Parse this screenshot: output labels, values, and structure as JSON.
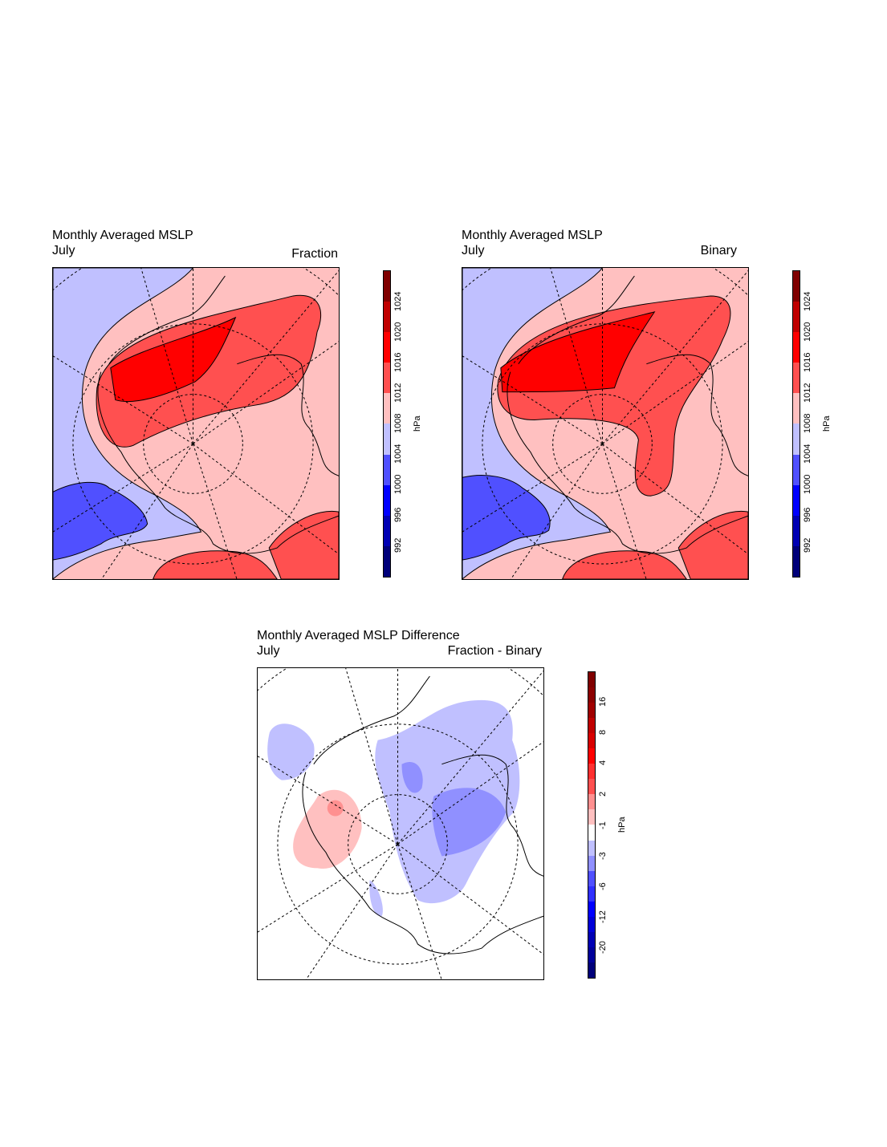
{
  "panels": [
    {
      "title": "Monthly Averaged MSLP",
      "month": "July",
      "label": "Fraction"
    },
    {
      "title": "Monthly Averaged MSLP",
      "month": "July",
      "label": "Binary"
    },
    {
      "title": "Monthly Averaged MSLP Difference",
      "month": "July",
      "label": "Fraction - Binary"
    }
  ],
  "colorbars": [
    {
      "unit": "hPa",
      "colors": [
        "#00007a",
        "#0000b4",
        "#0000ff",
        "#5050ff",
        "#c0c0ff",
        "#ffc0c0",
        "#ff5050",
        "#ff0000",
        "#c00000",
        "#800000"
      ],
      "labels": [
        "992",
        "996",
        "1000",
        "1004",
        "1008",
        "1012",
        "1016",
        "1020",
        "1024"
      ]
    },
    {
      "unit": "hPa",
      "colors": [
        "#00007a",
        "#00009a",
        "#0000b4",
        "#0000d8",
        "#0000ff",
        "#3030ff",
        "#5050ff",
        "#9090ff",
        "#c0c0ff",
        "#ffffff",
        "#ffc0c0",
        "#ff9090",
        "#ff5050",
        "#ff3030",
        "#ff0000",
        "#d80000",
        "#c00000",
        "#a00000",
        "#8c0000",
        "#800000"
      ],
      "labels": [
        "-20",
        "-12",
        "-6",
        "-3",
        "-1",
        "2",
        "4",
        "8",
        "16"
      ]
    }
  ]
}
